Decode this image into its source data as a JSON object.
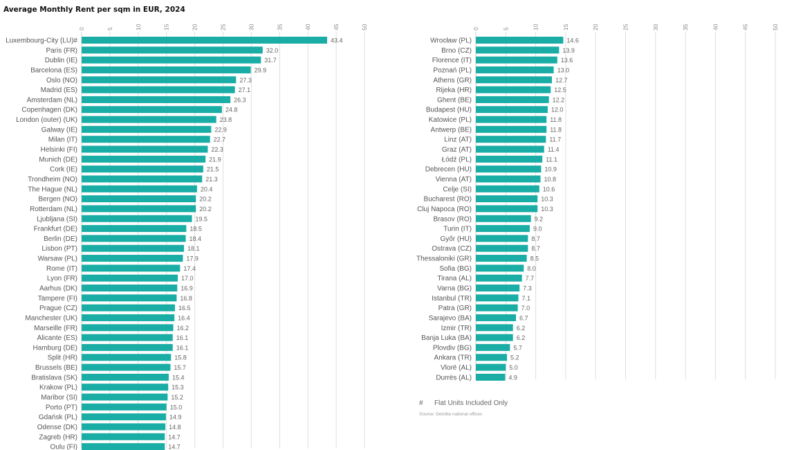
{
  "chart_data": {
    "type": "bar",
    "orientation": "horizontal",
    "title": "Average Monthly Rent per sqm in EUR, 2024",
    "xlim": [
      0,
      50
    ],
    "xticks": [
      0,
      5,
      10,
      15,
      20,
      25,
      30,
      35,
      40,
      45,
      50
    ],
    "bar_color": "#19ada5",
    "panels": [
      {
        "categories": [
          "Luxembourg-City (LU)#",
          "Paris (FR)",
          "Dublin (IE)",
          "Barcelona (ES)",
          "Oslo (NO)",
          "Madrid (ES)",
          "Amsterdam (NL)",
          "Copenhagen (DK)",
          "London (outer) (UK)",
          "Galway (IE)",
          "Milan (IT)",
          "Helsinki (FI)",
          "Munich (DE)",
          "Cork (IE)",
          "Trondheim (NO)",
          "The Hague (NL)",
          "Bergen (NO)",
          "Rotterdam (NL)",
          "Ljubljana (SI)",
          "Frankfurt (DE)",
          "Berlin (DE)",
          "Lisbon (PT)",
          "Warsaw (PL)",
          "Rome (IT)",
          "Lyon (FR)",
          "Aarhus (DK)",
          "Tampere (FI)",
          "Prague (CZ)",
          "Manchester (UK)",
          "Marseille (FR)",
          "Alicante (ES)",
          "Hamburg (DE)",
          "Split (HR)",
          "Brussels (BE)",
          "Bratislava (SK)",
          "Krakow (PL)",
          "Maribor (SI)",
          "Porto (PT)",
          "Gdańsk (PL)",
          "Odense (DK)",
          "Zagreb (HR)",
          "Oulu (FI)"
        ],
        "values": [
          43.4,
          32.0,
          31.7,
          29.9,
          27.3,
          27.1,
          26.3,
          24.8,
          23.8,
          22.9,
          22.7,
          22.3,
          21.9,
          21.5,
          21.3,
          20.4,
          20.2,
          20.2,
          19.5,
          18.5,
          18.4,
          18.1,
          17.9,
          17.4,
          17.0,
          16.9,
          16.8,
          16.5,
          16.4,
          16.2,
          16.1,
          16.1,
          15.8,
          15.7,
          15.4,
          15.3,
          15.2,
          15.0,
          14.9,
          14.8,
          14.7,
          14.7
        ],
        "labels": [
          "43.4",
          "32.0",
          "31.7",
          "29.9",
          "27.3",
          "27.1",
          "26.3",
          "24.8",
          "23.8",
          "22.9",
          "22.7",
          "22.3",
          "21.9",
          "21.5",
          "21.3",
          "20.4",
          "20.2",
          "20.2",
          "19.5",
          "18.5",
          "18.4",
          "18.1",
          "17.9",
          "17.4",
          "17.0",
          "16.9",
          "16.8",
          "16.5",
          "16.4",
          "16.2",
          "16.1",
          "16.1",
          "15.8",
          "15.7",
          "15.4",
          "15.3",
          "15.2",
          "15.0",
          "14.9",
          "14.8",
          "14.7",
          "14.7"
        ]
      },
      {
        "categories": [
          "Wrocław (PL)",
          "Brno (CZ)",
          "Florence (IT)",
          "Poznań (PL)",
          "Athens (GR)",
          "Rijeka (HR)",
          "Ghent (BE)",
          "Budapest (HU)",
          "Katowice (PL)",
          "Antwerp (BE)",
          "Linz (AT)",
          "Graz (AT)",
          "Łódź (PL)",
          "Debrecen (HU)",
          "Vienna (AT)",
          "Celje (SI)",
          "Bucharest (RO)",
          "Cluj Napoca (RO)",
          "Brasov (RO)",
          "Turin (IT)",
          "Győr (HU)",
          "Ostrava (CZ)",
          "Thessaloniki (GR)",
          "Sofia (BG)",
          "Tirana (AL)",
          "Varna (BG)",
          "Istanbul (TR)",
          "Patra (GR)",
          "Sarajevo (BA)",
          "Izmir (TR)",
          "Banja Luka (BA)",
          "Plovdiv (BG)",
          "Ankara (TR)",
          "Vlorë (AL)",
          "Durrës (AL)"
        ],
        "values": [
          14.6,
          13.9,
          13.6,
          13.0,
          12.7,
          12.5,
          12.2,
          12.0,
          11.8,
          11.8,
          11.7,
          11.4,
          11.1,
          10.9,
          10.8,
          10.6,
          10.3,
          10.3,
          9.2,
          9.0,
          8.7,
          8.7,
          8.5,
          8.0,
          7.7,
          7.3,
          7.1,
          7.0,
          6.7,
          6.2,
          6.2,
          5.7,
          5.2,
          5.0,
          4.9
        ],
        "labels": [
          "14.6",
          "13.9",
          "13.6",
          "13.0",
          "12.7",
          "12.5",
          "12.2",
          "12.0",
          "11.8",
          "11.8",
          "11.7",
          "11.4",
          "11.1",
          "10.9",
          "10.8",
          "10.6",
          "10.3",
          "10.3",
          "9.2",
          "9.0",
          "8.7",
          "8.7",
          "8.5",
          "8.0",
          "7.7",
          "7.3",
          "7.1",
          "7.0",
          "6.7",
          "6.2",
          "6.2",
          "5.7",
          "5.2",
          "5.0",
          "4.9"
        ]
      }
    ],
    "footnote": {
      "mark": "#",
      "text": "Flat Units Included Only"
    },
    "source": "Source: Deloitte national offices",
    "legend": "none",
    "grid": true
  }
}
